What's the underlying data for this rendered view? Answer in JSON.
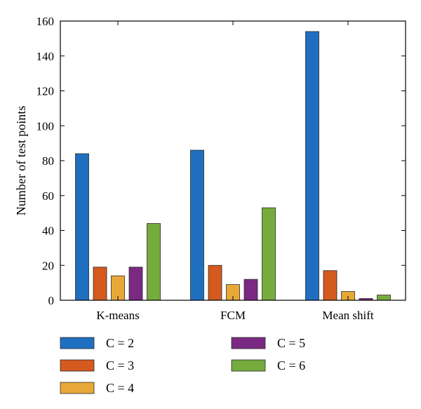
{
  "chart_data": {
    "type": "bar",
    "title": "",
    "xlabel": "",
    "ylabel": "Number of test points",
    "categories": [
      "K-means",
      "FCM",
      "Mean shift"
    ],
    "ylim": [
      0,
      160
    ],
    "yticks": [
      0,
      20,
      40,
      60,
      80,
      100,
      120,
      140,
      160
    ],
    "grid": false,
    "legend_position": "bottom",
    "series": [
      {
        "name": "C = 2",
        "color": "#1f6fc1",
        "values": [
          84,
          86,
          154
        ]
      },
      {
        "name": "C = 3",
        "color": "#d45a1f",
        "values": [
          19,
          20,
          17
        ]
      },
      {
        "name": "C = 4",
        "color": "#e8a838",
        "values": [
          14,
          9,
          5
        ]
      },
      {
        "name": "C = 5",
        "color": "#7b2a83",
        "values": [
          19,
          12,
          1
        ]
      },
      {
        "name": "C = 6",
        "color": "#76ab3e",
        "values": [
          44,
          53,
          3
        ]
      }
    ]
  }
}
